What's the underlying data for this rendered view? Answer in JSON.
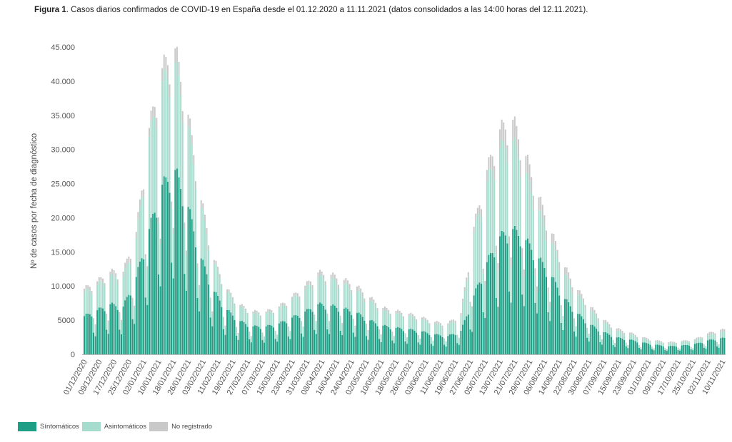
{
  "title": {
    "bold": "Figura 1",
    "text": ". Casos diarios confirmados de COVID-19 en España desde el 01.12.2020 a 11.11.2021 (datos consolidados a las 14:00 horas del 12.11.2021)."
  },
  "colors": {
    "sintomaticos": "#1e9e84",
    "asintomaticos": "#a6dccd",
    "no_registrado": "#c9c9c9"
  },
  "chart_data": {
    "type": "bar",
    "stacked": true,
    "title": "",
    "xlabel": "",
    "ylabel": "Nº de casos por fecha de diagnóstico",
    "ylim": [
      0,
      45000
    ],
    "yticks": [
      0,
      5000,
      10000,
      15000,
      20000,
      25000,
      30000,
      35000,
      40000,
      45000
    ],
    "ytick_labels": [
      "0",
      "5000",
      "10.000",
      "15.000",
      "20.000",
      "25.000",
      "30.000",
      "35.000",
      "40.000",
      "45.000"
    ],
    "x_start": "01/12/2020",
    "x_end": "11/11/2021",
    "xtick_labels": [
      "01/12/2020",
      "09/12/2020",
      "17/12/2020",
      "25/12/2020",
      "02/01/2021",
      "10/01/2021",
      "18/01/2021",
      "26/01/2021",
      "03/02/2021",
      "11/02/2021",
      "19/02/2021",
      "27/02/2021",
      "07/03/2021",
      "15/03/2021",
      "23/03/2021",
      "31/03/2021",
      "08/04/2021",
      "16/04/2021",
      "24/04/2021",
      "02/05/2021",
      "10/05/2021",
      "18/05/2021",
      "26/05/2021",
      "03/06/2021",
      "11/06/2021",
      "19/06/2021",
      "27/06/2021",
      "05/07/2021",
      "13/07/2021",
      "21/07/2021",
      "29/07/2021",
      "06/08/2021",
      "14/08/2021",
      "22/08/2021",
      "30/08/2021",
      "07/09/2021",
      "15/09/2021",
      "23/09/2021",
      "01/10/2021",
      "09/10/2021",
      "17/10/2021",
      "25/10/2021",
      "02/11/2021",
      "10/11/2021"
    ],
    "legend": {
      "placement": "bottom-left",
      "entries": [
        "Síntomáticos",
        "Asintomáticos",
        "No registrado"
      ]
    },
    "weekly_totals": {
      "dates": [
        "01/12/2020",
        "08/12/2020",
        "15/12/2020",
        "22/12/2020",
        "29/12/2020",
        "05/01/2021",
        "12/01/2021",
        "19/01/2021",
        "26/01/2021",
        "02/02/2021",
        "09/02/2021",
        "16/02/2021",
        "23/02/2021",
        "02/03/2021",
        "09/03/2021",
        "16/03/2021",
        "23/03/2021",
        "30/03/2021",
        "06/04/2021",
        "13/04/2021",
        "20/04/2021",
        "27/04/2021",
        "04/05/2021",
        "11/05/2021",
        "18/05/2021",
        "25/05/2021",
        "01/06/2021",
        "08/06/2021",
        "15/06/2021",
        "22/06/2021",
        "29/06/2021",
        "06/07/2021",
        "13/07/2021",
        "20/07/2021",
        "27/07/2021",
        "03/08/2021",
        "10/08/2021",
        "17/08/2021",
        "24/08/2021",
        "31/08/2021",
        "07/09/2021",
        "14/09/2021",
        "21/09/2021",
        "28/09/2021",
        "05/10/2021",
        "12/10/2021",
        "19/10/2021",
        "26/10/2021",
        "02/11/2021",
        "09/11/2021"
      ],
      "series": [
        {
          "name": "Síntomáticos",
          "values": [
            5200,
            6000,
            6800,
            6500,
            10500,
            17000,
            23000,
            25000,
            20000,
            13000,
            8500,
            6000,
            4500,
            3800,
            3800,
            4200,
            5000,
            5800,
            6800,
            6600,
            6200,
            5600,
            4600,
            3900,
            3600,
            3400,
            3100,
            2700,
            2500,
            3200,
            8000,
            12500,
            16000,
            17000,
            15500,
            13000,
            10500,
            7500,
            5500,
            4000,
            3000,
            2300,
            2000,
            1600,
            1300,
            1100,
            1200,
            1400,
            1900,
            2200
          ]
        },
        {
          "name": "Asintomáticos",
          "values": [
            3200,
            3400,
            3800,
            4000,
            5200,
            12500,
            14000,
            14500,
            11000,
            7000,
            3800,
            2400,
            1900,
            1700,
            1700,
            2000,
            2400,
            3000,
            3700,
            3600,
            3300,
            3000,
            2600,
            2000,
            1900,
            1800,
            1600,
            1400,
            1400,
            2000,
            8500,
            11000,
            12000,
            12000,
            9000,
            6500,
            4500,
            3300,
            2500,
            1900,
            1300,
            900,
            700,
            500,
            450,
            400,
            450,
            500,
            700,
            800
          ]
        },
        {
          "name": "No registrado",
          "values": [
            500,
            500,
            600,
            700,
            900,
            1200,
            1800,
            2000,
            1500,
            900,
            500,
            400,
            300,
            300,
            300,
            300,
            400,
            500,
            600,
            600,
            600,
            600,
            500,
            400,
            400,
            300,
            300,
            300,
            300,
            400,
            800,
            1500,
            2500,
            2800,
            2400,
            1800,
            1400,
            1000,
            700,
            500,
            350,
            300,
            250,
            200,
            150,
            150,
            150,
            150,
            250,
            350
          ]
        }
      ]
    }
  }
}
